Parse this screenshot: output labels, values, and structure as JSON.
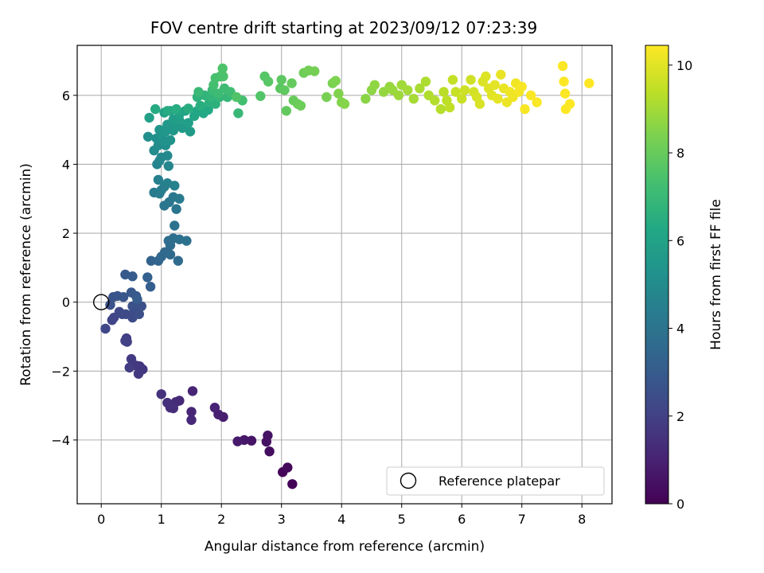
{
  "chart_data": {
    "type": "scatter",
    "title": "FOV centre drift starting at 2023/09/12 07:23:39",
    "xlabel": "Angular distance from reference (arcmin)",
    "ylabel": "Rotation from reference (arcmin)",
    "xlim": [
      -0.4,
      8.5
    ],
    "ylim": [
      -5.85,
      7.45
    ],
    "xticks": [
      0,
      1,
      2,
      3,
      4,
      5,
      6,
      7,
      8
    ],
    "yticks": [
      -4,
      -2,
      0,
      2,
      4,
      6
    ],
    "grid": true,
    "colormap": "viridis",
    "colorbar": {
      "label": "Hours from first FF file",
      "range": [
        0,
        10.45
      ],
      "ticks": [
        0,
        2,
        4,
        6,
        8,
        10
      ]
    },
    "legend": {
      "position": "bottom-right",
      "entries": [
        "Reference platepar"
      ]
    },
    "reference_point": {
      "x": 0,
      "y": 0
    },
    "series": [
      {
        "points": [
          [
            3.18,
            -5.28,
            0.05
          ],
          [
            3.02,
            -4.93,
            0.15
          ],
          [
            3.1,
            -4.8,
            0.25
          ],
          [
            2.8,
            -4.33,
            0.35
          ],
          [
            2.75,
            -4.05,
            0.45
          ],
          [
            2.77,
            -3.87,
            0.55
          ],
          [
            2.5,
            -4.02,
            0.6
          ],
          [
            2.38,
            -4.0,
            0.68
          ],
          [
            2.27,
            -4.04,
            0.75
          ],
          [
            2.03,
            -3.33,
            0.85
          ],
          [
            1.95,
            -3.26,
            0.92
          ],
          [
            1.89,
            -3.06,
            1.0
          ],
          [
            1.52,
            -2.58,
            1.05
          ],
          [
            1.5,
            -3.18,
            1.1
          ],
          [
            1.5,
            -3.42,
            1.15
          ],
          [
            1.3,
            -2.86,
            1.22
          ],
          [
            1.24,
            -2.9,
            1.28
          ],
          [
            1.15,
            -3.06,
            1.33
          ],
          [
            1.2,
            -3.08,
            1.38
          ],
          [
            1.1,
            -2.92,
            1.43
          ],
          [
            1.0,
            -2.67,
            1.5
          ],
          [
            0.69,
            -1.95,
            1.6
          ],
          [
            0.64,
            -1.86,
            1.66
          ],
          [
            0.58,
            -1.84,
            1.7
          ],
          [
            0.62,
            -2.08,
            1.74
          ],
          [
            0.5,
            -1.65,
            1.8
          ],
          [
            0.47,
            -1.9,
            1.85
          ],
          [
            0.42,
            -1.05,
            1.92
          ],
          [
            0.43,
            -1.15,
            1.97
          ],
          [
            0.4,
            -1.12,
            2.0
          ],
          [
            0.18,
            -0.52,
            2.1
          ],
          [
            0.21,
            -0.45,
            2.15
          ],
          [
            0.07,
            -0.77,
            2.2
          ],
          [
            0.3,
            -0.28,
            2.25
          ],
          [
            0.35,
            -0.35,
            2.3
          ],
          [
            0.41,
            -0.35,
            2.35
          ],
          [
            0.52,
            -0.45,
            2.4
          ],
          [
            0.55,
            -0.28,
            2.45
          ],
          [
            0.63,
            -0.35,
            2.5
          ],
          [
            0.67,
            -0.12,
            2.55
          ],
          [
            0.52,
            -0.12,
            2.6
          ],
          [
            0.15,
            -0.08,
            2.65
          ],
          [
            0.2,
            0.15,
            2.7
          ],
          [
            0.27,
            0.18,
            2.75
          ],
          [
            0.37,
            0.15,
            2.8
          ],
          [
            0.5,
            0.28,
            2.85
          ],
          [
            0.58,
            0.18,
            2.9
          ],
          [
            0.4,
            0.8,
            2.95
          ],
          [
            0.52,
            0.75,
            3.0
          ],
          [
            0.6,
            0.08,
            3.05
          ],
          [
            0.82,
            0.45,
            3.1
          ],
          [
            0.77,
            0.72,
            3.2
          ],
          [
            0.83,
            1.2,
            3.3
          ],
          [
            0.95,
            1.2,
            3.4
          ],
          [
            1.0,
            1.32,
            3.5
          ],
          [
            1.06,
            1.45,
            3.55
          ],
          [
            1.15,
            1.38,
            3.6
          ],
          [
            1.28,
            1.2,
            3.65
          ],
          [
            1.15,
            1.65,
            3.7
          ],
          [
            1.12,
            1.78,
            3.75
          ],
          [
            1.2,
            1.85,
            3.8
          ],
          [
            1.3,
            1.82,
            3.85
          ],
          [
            1.42,
            1.78,
            3.9
          ],
          [
            1.22,
            2.22,
            3.95
          ],
          [
            1.25,
            2.7,
            4.05
          ],
          [
            1.05,
            2.8,
            4.1
          ],
          [
            1.13,
            2.9,
            4.15
          ],
          [
            1.2,
            3.05,
            4.2
          ],
          [
            1.3,
            3.0,
            4.25
          ],
          [
            0.88,
            3.18,
            4.3
          ],
          [
            0.97,
            3.15,
            4.35
          ],
          [
            1.0,
            3.25,
            4.4
          ],
          [
            1.05,
            3.35,
            4.45
          ],
          [
            0.95,
            3.55,
            4.5
          ],
          [
            1.1,
            3.45,
            4.55
          ],
          [
            1.22,
            3.38,
            4.6
          ],
          [
            0.93,
            4.0,
            4.7
          ],
          [
            0.97,
            4.1,
            4.75
          ],
          [
            1.12,
            3.95,
            4.8
          ],
          [
            1.0,
            4.2,
            4.85
          ],
          [
            1.1,
            4.25,
            4.9
          ],
          [
            0.88,
            4.4,
            5.0
          ],
          [
            0.95,
            4.55,
            5.05
          ],
          [
            1.07,
            4.55,
            5.1
          ],
          [
            0.78,
            4.8,
            5.15
          ],
          [
            0.92,
            4.75,
            5.2
          ],
          [
            1.05,
            4.68,
            5.25
          ],
          [
            1.15,
            4.7,
            5.3
          ],
          [
            1.0,
            4.88,
            5.35
          ],
          [
            0.97,
            5.0,
            5.4
          ],
          [
            1.07,
            4.95,
            5.45
          ],
          [
            1.2,
            4.98,
            5.5
          ],
          [
            1.1,
            5.15,
            5.55
          ],
          [
            1.25,
            5.1,
            5.6
          ],
          [
            1.35,
            5.05,
            5.65
          ],
          [
            1.48,
            4.95,
            5.7
          ],
          [
            1.2,
            5.3,
            5.75
          ],
          [
            1.3,
            5.28,
            5.8
          ],
          [
            1.45,
            5.2,
            5.85
          ],
          [
            0.8,
            5.35,
            5.9
          ],
          [
            1.05,
            5.5,
            5.95
          ],
          [
            1.15,
            5.55,
            6.0
          ],
          [
            1.3,
            5.45,
            6.05
          ],
          [
            1.4,
            5.55,
            6.1
          ],
          [
            1.55,
            5.4,
            6.15
          ],
          [
            1.6,
            5.55,
            6.2
          ],
          [
            1.7,
            5.48,
            6.25
          ],
          [
            1.78,
            5.58,
            6.3
          ],
          [
            0.9,
            5.6,
            6.35
          ],
          [
            1.1,
            5.55,
            6.4
          ],
          [
            1.25,
            5.6,
            6.45
          ],
          [
            1.45,
            5.62,
            6.5
          ],
          [
            1.65,
            5.7,
            6.55
          ],
          [
            1.8,
            5.8,
            6.6
          ],
          [
            1.9,
            5.75,
            6.65
          ],
          [
            1.6,
            5.95,
            6.7
          ],
          [
            1.72,
            6.0,
            6.75
          ],
          [
            1.82,
            5.95,
            6.8
          ],
          [
            1.97,
            5.95,
            6.85
          ],
          [
            2.1,
            5.95,
            6.9
          ],
          [
            2.28,
            5.48,
            6.95
          ],
          [
            1.62,
            6.1,
            7.0
          ],
          [
            1.85,
            6.15,
            7.05
          ],
          [
            1.95,
            6.05,
            7.1
          ],
          [
            2.05,
            6.2,
            7.15
          ],
          [
            2.15,
            6.1,
            7.2
          ],
          [
            2.35,
            5.85,
            7.25
          ],
          [
            1.87,
            6.3,
            7.3
          ],
          [
            1.9,
            6.5,
            7.35
          ],
          [
            1.98,
            6.55,
            7.4
          ],
          [
            2.03,
            6.55,
            7.45
          ],
          [
            2.02,
            6.78,
            7.5
          ],
          [
            2.25,
            5.95,
            7.55
          ],
          [
            2.65,
            5.98,
            7.6
          ],
          [
            2.72,
            6.55,
            7.65
          ],
          [
            2.78,
            6.4,
            7.7
          ],
          [
            2.98,
            6.2,
            7.75
          ],
          [
            3.0,
            6.45,
            7.8
          ],
          [
            3.05,
            6.15,
            7.85
          ],
          [
            3.08,
            5.55,
            7.9
          ],
          [
            3.17,
            6.35,
            7.95
          ],
          [
            3.2,
            5.85,
            8.0
          ],
          [
            3.27,
            5.75,
            8.05
          ],
          [
            3.32,
            5.7,
            8.1
          ],
          [
            3.37,
            6.65,
            8.15
          ],
          [
            3.45,
            6.72,
            8.2
          ],
          [
            3.55,
            6.7,
            8.25
          ],
          [
            3.75,
            5.95,
            8.3
          ],
          [
            3.85,
            6.35,
            8.35
          ],
          [
            3.9,
            6.42,
            8.4
          ],
          [
            3.95,
            6.05,
            8.45
          ],
          [
            4.0,
            5.8,
            8.5
          ],
          [
            4.05,
            5.75,
            8.55
          ],
          [
            4.4,
            5.9,
            8.6
          ],
          [
            4.5,
            6.15,
            8.65
          ],
          [
            4.55,
            6.3,
            8.7
          ],
          [
            4.7,
            6.1,
            8.75
          ],
          [
            4.8,
            6.25,
            8.8
          ],
          [
            4.85,
            6.15,
            8.85
          ],
          [
            4.95,
            6.0,
            8.9
          ],
          [
            5.0,
            6.3,
            8.95
          ],
          [
            5.1,
            6.15,
            9.0
          ],
          [
            5.2,
            5.9,
            9.05
          ],
          [
            5.3,
            6.2,
            9.1
          ],
          [
            5.4,
            6.4,
            9.15
          ],
          [
            5.45,
            6.0,
            9.2
          ],
          [
            5.55,
            5.85,
            9.25
          ],
          [
            5.65,
            5.6,
            9.3
          ],
          [
            5.7,
            6.1,
            9.35
          ],
          [
            5.75,
            5.85,
            9.4
          ],
          [
            5.8,
            5.65,
            9.45
          ],
          [
            5.85,
            6.45,
            9.5
          ],
          [
            5.9,
            6.1,
            9.55
          ],
          [
            6.0,
            5.9,
            9.6
          ],
          [
            6.05,
            6.15,
            9.65
          ],
          [
            6.15,
            6.45,
            9.7
          ],
          [
            6.2,
            6.1,
            9.75
          ],
          [
            6.25,
            5.95,
            9.8
          ],
          [
            6.3,
            5.75,
            9.85
          ],
          [
            6.35,
            6.4,
            9.9
          ],
          [
            6.4,
            6.55,
            9.93
          ],
          [
            6.45,
            6.2,
            9.96
          ],
          [
            6.5,
            6.0,
            10.0
          ],
          [
            6.55,
            6.3,
            10.03
          ],
          [
            6.6,
            5.9,
            10.06
          ],
          [
            6.65,
            6.6,
            10.1
          ],
          [
            6.7,
            6.2,
            10.13
          ],
          [
            6.75,
            5.8,
            10.16
          ],
          [
            6.8,
            6.1,
            10.2
          ],
          [
            6.85,
            5.95,
            10.23
          ],
          [
            6.9,
            6.35,
            10.26
          ],
          [
            6.95,
            6.1,
            10.3
          ],
          [
            7.0,
            6.25,
            10.33
          ],
          [
            7.05,
            5.6,
            10.36
          ],
          [
            7.15,
            6.0,
            10.38
          ],
          [
            7.25,
            5.8,
            10.4
          ],
          [
            7.68,
            6.85,
            10.42
          ],
          [
            7.7,
            6.4,
            10.43
          ],
          [
            7.72,
            6.05,
            10.44
          ],
          [
            7.73,
            5.6,
            10.44
          ],
          [
            7.8,
            5.75,
            10.45
          ],
          [
            8.12,
            6.35,
            10.45
          ]
        ]
      }
    ]
  }
}
